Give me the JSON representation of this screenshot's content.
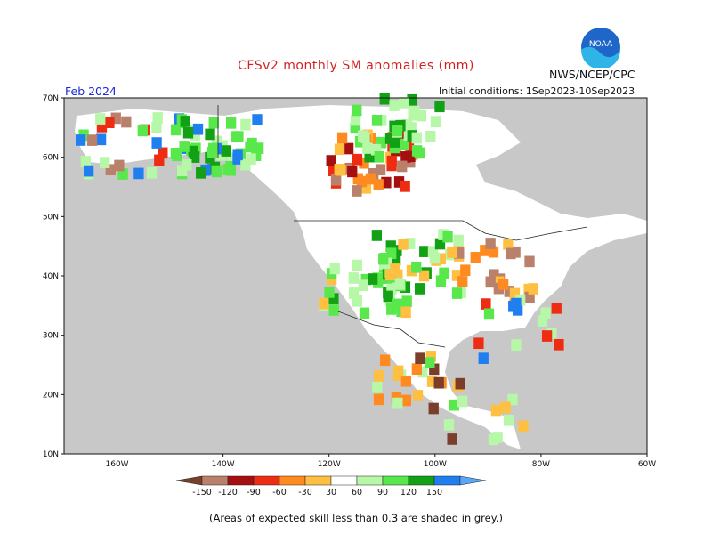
{
  "header": {
    "title": "CFSv2 monthly SM anomalies (mm)",
    "agency": "NWS/NCEP/CPC",
    "logo_text": "NOAA",
    "month": "Feb 2024",
    "initial_conditions": "Initial conditions: 1Sep2023-10Sep2023"
  },
  "map": {
    "lat_labels": [
      "70N",
      "60N",
      "50N",
      "40N",
      "30N",
      "20N",
      "10N"
    ],
    "lon_labels": [
      "160W",
      "140W",
      "120W",
      "100W",
      "80W",
      "60W"
    ],
    "lat_range": [
      10,
      70
    ],
    "lon_range": [
      -170,
      -60
    ],
    "ocean_color": "#ffffff",
    "no_skill_color": "#c8c8c8"
  },
  "colorbar": {
    "ticks": [
      "-150",
      "-120",
      "-90",
      "-60",
      "-30",
      "30",
      "60",
      "90",
      "120",
      "150"
    ],
    "colors": [
      "#7a3f2a",
      "#b9806b",
      "#a50f0f",
      "#ee2c12",
      "#ff8a20",
      "#ffc042",
      "#ffffff",
      "#b6f7a8",
      "#59e84c",
      "#12a114",
      "#1f7ff0",
      "#5aa7f7"
    ]
  },
  "footer": {
    "note": "(Areas of expected skill less than 0.3 are shaded in grey.)"
  }
}
